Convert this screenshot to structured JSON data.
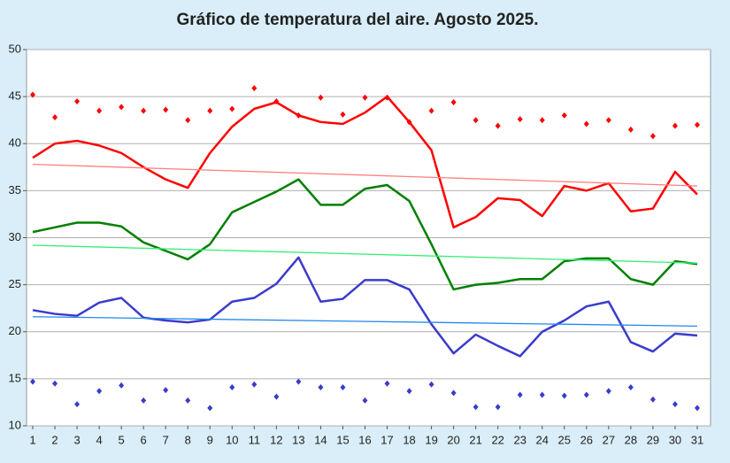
{
  "chart_data": {
    "type": "line",
    "title": "Gráfico de temperatura del aire. Agosto 2025.",
    "x": [
      1,
      2,
      3,
      4,
      5,
      6,
      7,
      8,
      9,
      10,
      11,
      12,
      13,
      14,
      15,
      16,
      17,
      18,
      19,
      20,
      21,
      22,
      23,
      24,
      25,
      26,
      27,
      28,
      29,
      30,
      31
    ],
    "xlim": [
      0.72,
      31.6
    ],
    "xticks": [
      1,
      2,
      3,
      4,
      5,
      6,
      7,
      8,
      9,
      10,
      11,
      12,
      13,
      14,
      15,
      16,
      17,
      18,
      19,
      20,
      21,
      22,
      23,
      24,
      25,
      26,
      27,
      28,
      29,
      30,
      31
    ],
    "ylim": [
      10,
      50
    ],
    "yticks": [
      10,
      15,
      20,
      25,
      30,
      35,
      40,
      45,
      50
    ],
    "grid": true,
    "series": [
      {
        "color": "#ff0000",
        "style": "markers",
        "values": [
          45.2,
          42.8,
          44.5,
          43.5,
          43.9,
          43.5,
          43.6,
          42.5,
          43.5,
          43.7,
          45.9,
          44.5,
          43.0,
          44.9,
          43.1,
          44.9,
          44.9,
          42.3,
          43.5,
          44.4,
          42.5,
          41.9,
          42.6,
          42.5,
          43.0,
          42.1,
          42.5,
          41.5,
          40.8,
          41.9,
          42.0
        ]
      },
      {
        "color": "#ff0000",
        "style": "line",
        "values": [
          38.5,
          40.0,
          40.3,
          39.8,
          39.0,
          37.5,
          36.2,
          35.3,
          39.0,
          41.8,
          43.7,
          44.4,
          43.0,
          42.3,
          42.1,
          43.3,
          45.0,
          42.3,
          39.3,
          31.1,
          32.2,
          34.2,
          34.0,
          32.3,
          35.5,
          35.0,
          35.8,
          32.8,
          33.1,
          37.0,
          34.6
        ]
      },
      {
        "color": "#008000",
        "style": "line",
        "values": [
          30.6,
          31.1,
          31.6,
          31.6,
          31.2,
          29.5,
          28.6,
          27.7,
          29.3,
          32.7,
          33.8,
          34.9,
          36.2,
          33.5,
          33.5,
          35.2,
          35.6,
          33.9,
          29.3,
          24.5,
          25.0,
          25.2,
          25.6,
          25.6,
          27.5,
          27.8,
          27.8,
          25.6,
          25.0,
          27.5,
          27.2
        ]
      },
      {
        "color": "#3b3bcc",
        "style": "line",
        "values": [
          22.3,
          21.9,
          21.7,
          23.1,
          23.6,
          21.5,
          21.2,
          21.0,
          21.3,
          23.2,
          23.6,
          25.1,
          27.9,
          23.2,
          23.5,
          25.5,
          25.5,
          24.5,
          20.8,
          17.7,
          19.7,
          18.5,
          17.4,
          20.0,
          21.2,
          22.7,
          23.2,
          18.9,
          17.9,
          19.8,
          19.6
        ]
      },
      {
        "color": "#3b3bcc",
        "style": "markers",
        "values": [
          14.7,
          14.5,
          12.3,
          13.7,
          14.3,
          12.7,
          13.8,
          12.7,
          11.9,
          14.1,
          14.4,
          13.1,
          14.7,
          14.1,
          14.1,
          12.7,
          14.5,
          13.7,
          14.4,
          13.5,
          12.0,
          12.0,
          13.3,
          13.3,
          13.2,
          13.3,
          13.7,
          14.1,
          12.8,
          12.3,
          11.9
        ]
      },
      {
        "color": "#ff8080",
        "style": "trend",
        "x": [
          1,
          31
        ],
        "values": [
          37.8,
          35.5
        ]
      },
      {
        "color": "#33ee77",
        "style": "trend",
        "x": [
          1,
          31
        ],
        "values": [
          29.2,
          27.3
        ]
      },
      {
        "color": "#2288ee",
        "style": "trend",
        "x": [
          1,
          31
        ],
        "values": [
          21.6,
          20.6
        ]
      }
    ]
  }
}
